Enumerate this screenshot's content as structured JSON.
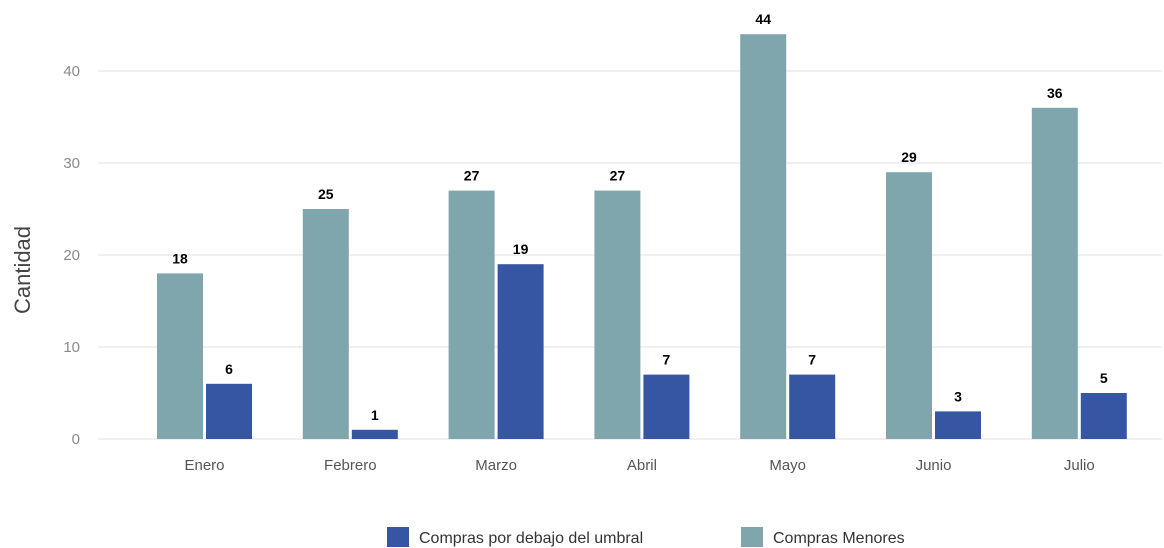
{
  "chart_data": {
    "type": "bar",
    "categories": [
      "Enero",
      "Febrero",
      "Marzo",
      "Abril",
      "Mayo",
      "Junio",
      "Julio"
    ],
    "series": [
      {
        "name": "Compras Menores",
        "color": "#7fa6ac",
        "values": [
          18,
          25,
          27,
          27,
          44,
          29,
          36
        ]
      },
      {
        "name": "Compras por debajo del umbral",
        "color": "#3656a3",
        "values": [
          6,
          1,
          19,
          7,
          7,
          3,
          5
        ]
      }
    ],
    "title": "",
    "xlabel": "",
    "ylabel": "Cantidad",
    "ylim": [
      0,
      46
    ],
    "yticks": [
      0,
      10,
      20,
      30,
      40
    ],
    "grid": true,
    "data_labels": true,
    "legend": {
      "position": "bottom",
      "order": [
        "Compras por debajo del umbral",
        "Compras Menores"
      ]
    }
  }
}
